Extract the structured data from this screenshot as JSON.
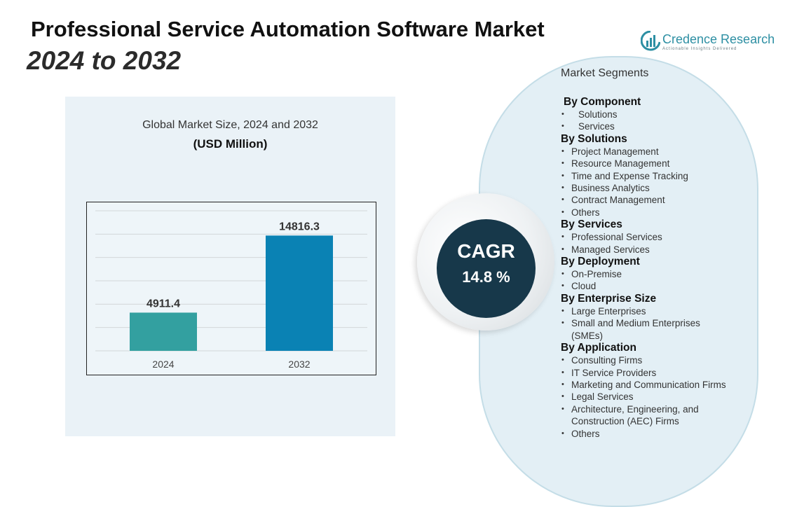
{
  "header": {
    "title": "Professional Service Automation Software Market",
    "subtitle": "2024 to 2032"
  },
  "logo": {
    "name": "Credence Research",
    "tagline": "Actionable Insights Delivered",
    "icon": "bar-chart-logo-icon"
  },
  "chart_panel": {
    "caption": "Global Market Size, 2024 and 2032",
    "unit": "(USD Million)"
  },
  "chart_data": {
    "type": "bar",
    "title": "Global Market Size, 2024 and 2032",
    "ylabel": "",
    "xlabel": "",
    "categories": [
      "2024",
      "2032"
    ],
    "values": [
      4911.4,
      14816.3
    ],
    "value_labels": [
      "4911.4",
      "14816.3"
    ],
    "colors": [
      "#33a0a0",
      "#0a82b4"
    ],
    "ylim": [
      0,
      18000
    ],
    "grid": true,
    "legend": "none"
  },
  "cagr": {
    "label": "CAGR",
    "value": "14.8 %"
  },
  "segments": {
    "heading": "Market Segments",
    "groups": [
      {
        "title": "By Component",
        "items": [
          "Solutions",
          "Services"
        ]
      },
      {
        "title": "By Solutions",
        "items": [
          "Project Management",
          "Resource Management",
          "Time and Expense Tracking",
          "Business Analytics",
          "Contract Management",
          "Others"
        ]
      },
      {
        "title": "By Services",
        "items": [
          "Professional Services",
          "Managed Services"
        ]
      },
      {
        "title": "By Deployment",
        "items": [
          "On-Premise",
          "Cloud"
        ]
      },
      {
        "title": "By Enterprise Size",
        "items": [
          "Large Enterprises",
          "Small and Medium Enterprises (SMEs)"
        ]
      },
      {
        "title": "By Application",
        "items": [
          "Consulting Firms",
          "IT Service Providers",
          "Marketing and Communication Firms",
          "Legal Services",
          "Architecture, Engineering, and Construction (AEC) Firms",
          "Others"
        ]
      }
    ]
  }
}
